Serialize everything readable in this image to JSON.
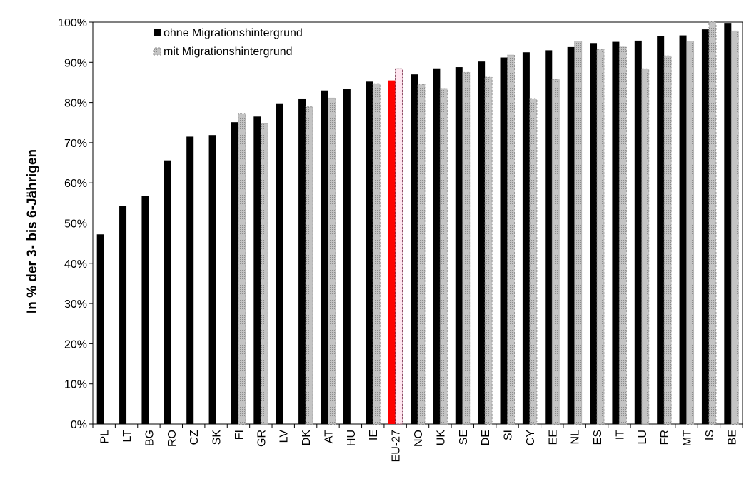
{
  "chart_data": {
    "type": "bar",
    "title": "",
    "xlabel": "",
    "ylabel": "In % der 3- bis 6-Jährigen",
    "ylim": [
      0,
      100
    ],
    "yticks": [
      "0%",
      "10%",
      "20%",
      "30%",
      "40%",
      "50%",
      "60%",
      "70%",
      "80%",
      "90%",
      "100%"
    ],
    "grid": false,
    "legend_position": "top-left",
    "categories": [
      "PL",
      "LT",
      "BG",
      "RO",
      "CZ",
      "SK",
      "FI",
      "GR",
      "LV",
      "DK",
      "AT",
      "HU",
      "IE",
      "EU-27",
      "NO",
      "UK",
      "SE",
      "DE",
      "SI",
      "CY",
      "EE",
      "NL",
      "ES",
      "IT",
      "LU",
      "FR",
      "MT",
      "IS",
      "BE"
    ],
    "highlight_category": "EU-27",
    "series": [
      {
        "name": "ohne Migrationshintergrund",
        "color": "#000000",
        "highlight_color": "#ff0000",
        "values": [
          47.2,
          54.3,
          56.8,
          65.6,
          71.5,
          71.9,
          75.1,
          76.5,
          79.8,
          81.0,
          83.0,
          83.3,
          85.2,
          85.5,
          87.0,
          88.5,
          88.8,
          90.2,
          91.2,
          92.5,
          93.0,
          93.8,
          94.8,
          95.1,
          95.4,
          96.5,
          96.7,
          98.2,
          99.8
        ]
      },
      {
        "name": "mit Migrationshintergrund",
        "color": "#b3b3b3",
        "highlight_color": "#ffe6f0",
        "values": [
          null,
          null,
          null,
          null,
          null,
          null,
          77.3,
          74.8,
          null,
          78.9,
          81.1,
          null,
          84.7,
          88.4,
          84.5,
          83.5,
          87.5,
          86.3,
          91.8,
          81.0,
          85.7,
          95.3,
          93.2,
          93.8,
          88.4,
          91.6,
          95.3,
          100.0,
          97.8
        ]
      }
    ]
  }
}
